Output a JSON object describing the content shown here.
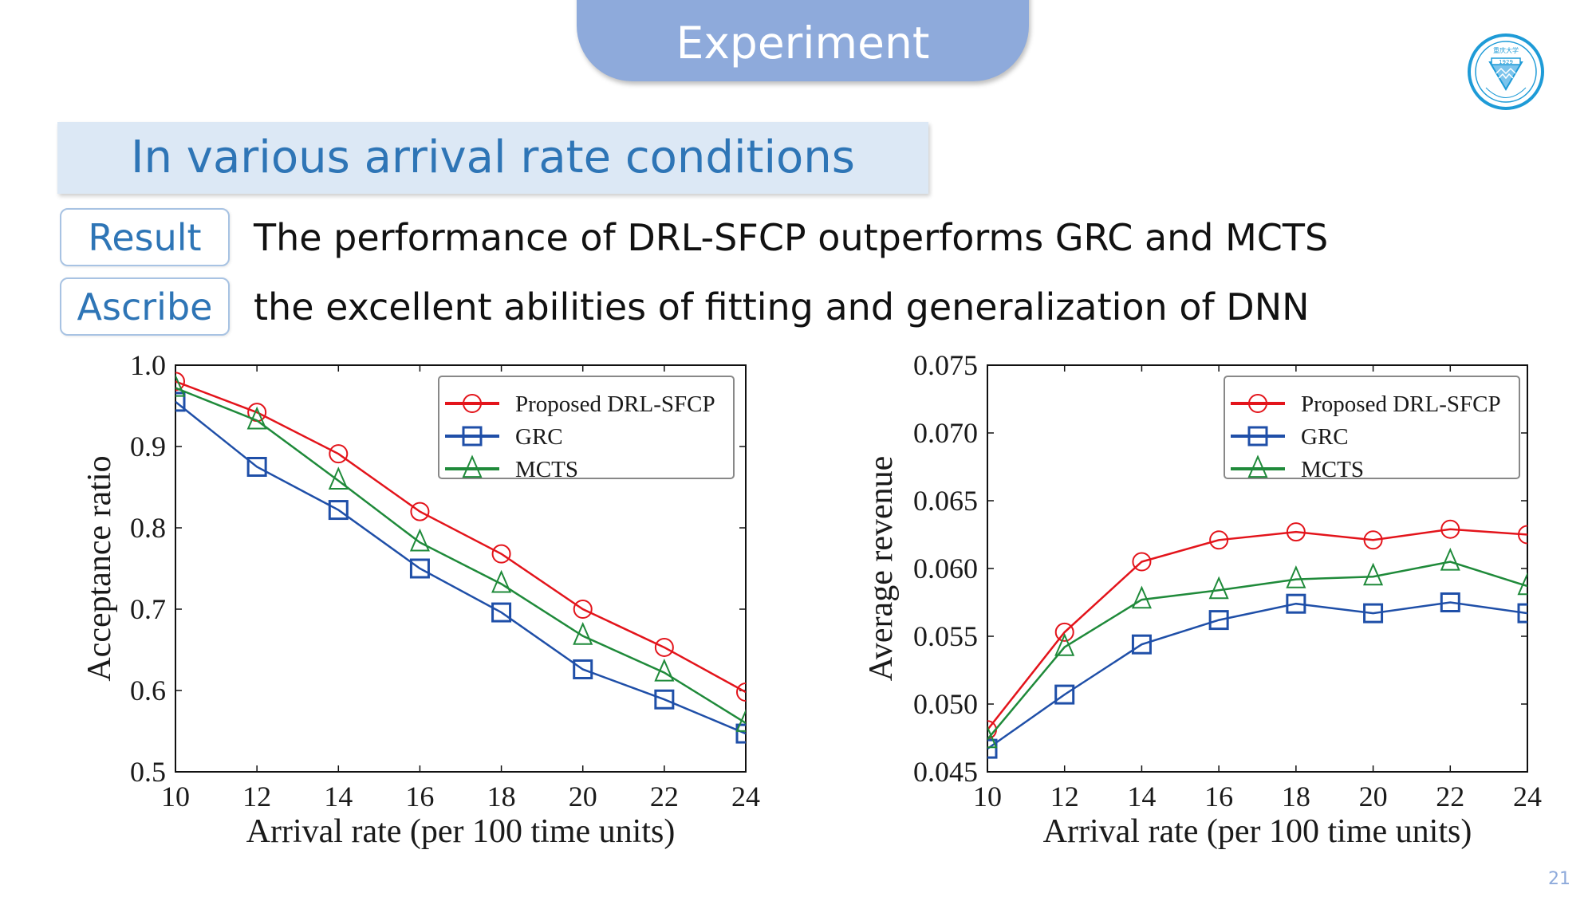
{
  "slide": {
    "header_title": "Experiment",
    "subtitle": "In various arrival rate conditions",
    "rows": [
      {
        "tag": "Result",
        "text": "The performance of DRL-SFCP outperforms GRC and MCTS"
      },
      {
        "tag": "Ascribe",
        "text": "the excellent abilities of fitting and generalization of DNN"
      }
    ],
    "logo": {
      "icon": "chongqing-university-seal-icon",
      "year": "1929",
      "text": "CHONGQING UNIVERSITY",
      "color": "#1e9bd7"
    },
    "page_number": "21",
    "colors": {
      "header": "#8eaadb",
      "subtitle_bg": "#dce8f5",
      "accent_text": "#2e75b6"
    }
  },
  "chart_data": [
    {
      "type": "line",
      "title": "",
      "xlabel": "Arrival rate (per 100 time units)",
      "ylabel": "Acceptance ratio",
      "x": [
        10,
        12,
        14,
        16,
        18,
        20,
        22,
        24
      ],
      "xlim": [
        10,
        24
      ],
      "ylim": [
        0.5,
        1.0
      ],
      "xticks": [
        "10",
        "12",
        "14",
        "16",
        "18",
        "20",
        "22",
        "24"
      ],
      "yticks": [
        "0.5",
        "0.6",
        "0.7",
        "0.8",
        "0.9",
        "1.0"
      ],
      "ytick_values": [
        0.5,
        0.6,
        0.7,
        0.8,
        0.9,
        1.0
      ],
      "grid": false,
      "legend_position": "top-right",
      "series": [
        {
          "name": "Proposed DRL-SFCP",
          "color": "#e3141b",
          "marker": "circle",
          "values": [
            0.98,
            0.942,
            0.891,
            0.82,
            0.768,
            0.7,
            0.653,
            0.598
          ]
        },
        {
          "name": "GRC",
          "color": "#1f4fa8",
          "marker": "square",
          "values": [
            0.955,
            0.875,
            0.822,
            0.75,
            0.696,
            0.626,
            0.589,
            0.547
          ]
        },
        {
          "name": "MCTS",
          "color": "#1f8a3a",
          "marker": "triangle",
          "values": [
            0.972,
            0.932,
            0.858,
            0.782,
            0.731,
            0.667,
            0.622,
            0.56
          ]
        }
      ]
    },
    {
      "type": "line",
      "title": "",
      "xlabel": "Arrival rate (per 100 time units)",
      "ylabel": "Average revenue",
      "x": [
        10,
        12,
        14,
        16,
        18,
        20,
        22,
        24
      ],
      "xlim": [
        10,
        24
      ],
      "ylim": [
        0.045,
        0.075
      ],
      "xticks": [
        "10",
        "12",
        "14",
        "16",
        "18",
        "20",
        "22",
        "24"
      ],
      "yticks": [
        "0.045",
        "0.050",
        "0.055",
        "0.060",
        "0.065",
        "0.070",
        "0.075"
      ],
      "ytick_values": [
        0.045,
        0.05,
        0.055,
        0.06,
        0.065,
        0.07,
        0.075
      ],
      "grid": false,
      "legend_position": "top-right",
      "series": [
        {
          "name": "Proposed DRL-SFCP",
          "color": "#e3141b",
          "marker": "circle",
          "values": [
            0.0481,
            0.0553,
            0.0605,
            0.0621,
            0.0627,
            0.0621,
            0.0629,
            0.0625
          ]
        },
        {
          "name": "GRC",
          "color": "#1f4fa8",
          "marker": "square",
          "values": [
            0.0467,
            0.0507,
            0.0544,
            0.0562,
            0.0574,
            0.0567,
            0.0575,
            0.0567
          ]
        },
        {
          "name": "MCTS",
          "color": "#1f8a3a",
          "marker": "triangle",
          "values": [
            0.0474,
            0.0542,
            0.0577,
            0.0584,
            0.0592,
            0.0594,
            0.0605,
            0.0587
          ]
        }
      ]
    }
  ]
}
